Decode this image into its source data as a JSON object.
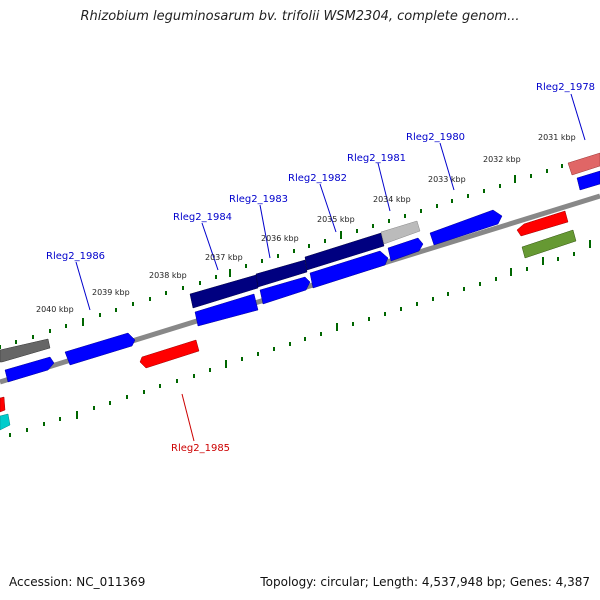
{
  "title": "Rhizobium leguminosarum bv. trifolii WSM2304, complete genom...",
  "footer": {
    "accession": "Accession: NC_011369",
    "summary": "Topology: circular; Length: 4,537,948 bp; Genes: 4,387"
  },
  "kbp_labels": [
    "2031 kbp",
    "2032 kbp",
    "2033 kbp",
    "2034 kbp",
    "2035 kbp",
    "2036 kbp",
    "2037 kbp",
    "2038 kbp",
    "2039 kbp",
    "2040 kbp"
  ],
  "gene_labels": [
    {
      "text": "Rleg2_1978",
      "color": "#0000cc"
    },
    {
      "text": "Rleg2_1980",
      "color": "#0000cc"
    },
    {
      "text": "Rleg2_1981",
      "color": "#0000cc"
    },
    {
      "text": "Rleg2_1982",
      "color": "#0000cc"
    },
    {
      "text": "Rleg2_1983",
      "color": "#0000cc"
    },
    {
      "text": "Rleg2_1984",
      "color": "#0000cc"
    },
    {
      "text": "Rleg2_1986",
      "color": "#0000cc"
    },
    {
      "text": "Rleg2_1985",
      "color": "#cc0000"
    }
  ],
  "colors": {
    "backbone": "#888888",
    "ticks": "#006600",
    "forward_gene": "#0000ff",
    "highlight_gene": "#000080",
    "reverse_gene": "#ff0000"
  }
}
